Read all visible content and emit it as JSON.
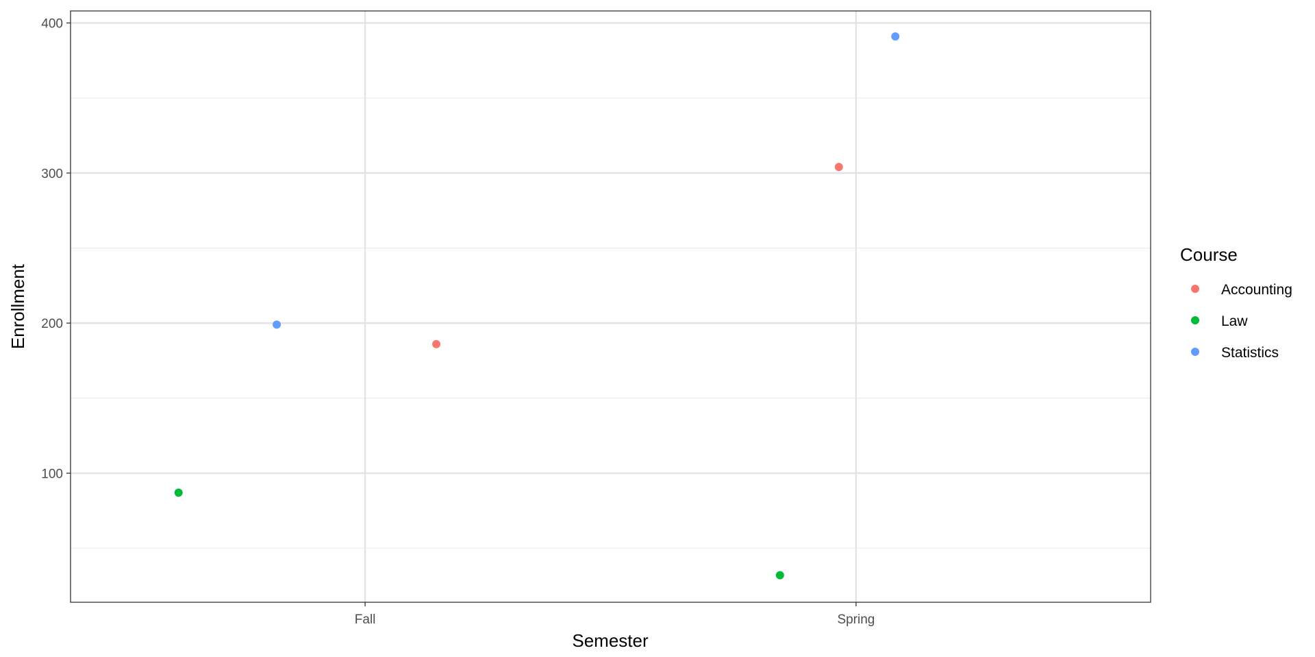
{
  "chart_data": {
    "type": "scatter",
    "title": "",
    "xlabel": "Semester",
    "ylabel": "Enrollment",
    "categories": [
      "Fall",
      "Spring"
    ],
    "ylim": [
      14,
      408
    ],
    "yticks": [
      100,
      200,
      300,
      400
    ],
    "grid": true,
    "legend": {
      "title": "Course",
      "position": "right"
    },
    "series": [
      {
        "name": "Accounting",
        "color": "#F8766D",
        "points": [
          {
            "category": "Fall",
            "jitter": 0.145,
            "y": 186
          },
          {
            "category": "Spring",
            "jitter": -0.035,
            "y": 304
          }
        ]
      },
      {
        "name": "Law",
        "color": "#00BA38",
        "points": [
          {
            "category": "Fall",
            "jitter": -0.38,
            "y": 87
          },
          {
            "category": "Spring",
            "jitter": -0.155,
            "y": 32
          }
        ]
      },
      {
        "name": "Statistics",
        "color": "#619CFF",
        "points": [
          {
            "category": "Fall",
            "jitter": -0.18,
            "y": 199
          },
          {
            "category": "Spring",
            "jitter": 0.08,
            "y": 391
          }
        ]
      }
    ]
  }
}
